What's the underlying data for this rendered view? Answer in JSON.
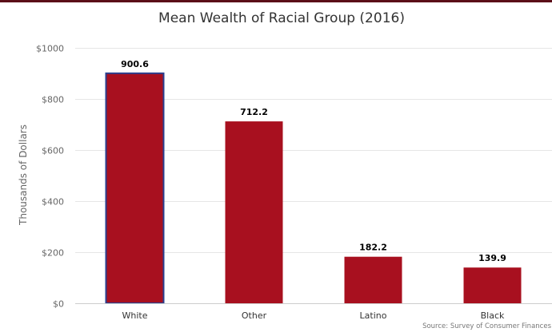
{
  "colors": {
    "bar": "#a8101f",
    "highlight_border": "#2a3f8f",
    "top_rule": "#5b0f18"
  },
  "chart_data": {
    "type": "bar",
    "title": "Mean Wealth of Racial Group (2016)",
    "xlabel": "",
    "ylabel": "Thousands of Dollars",
    "categories": [
      "White",
      "Other",
      "Latino",
      "Black"
    ],
    "values": [
      900.6,
      712.2,
      182.2,
      139.9
    ],
    "data_labels": [
      "900.6",
      "712.2",
      "182.2",
      "139.9"
    ],
    "highlighted_category": "White",
    "ylim": [
      0,
      1000
    ],
    "yticks": [
      0,
      200,
      400,
      600,
      800,
      1000
    ],
    "ytick_labels": [
      "$0",
      "$200",
      "$400",
      "$600",
      "$800",
      "$1000"
    ],
    "grid": true,
    "source": "Source: Survey of Consumer Finances"
  }
}
